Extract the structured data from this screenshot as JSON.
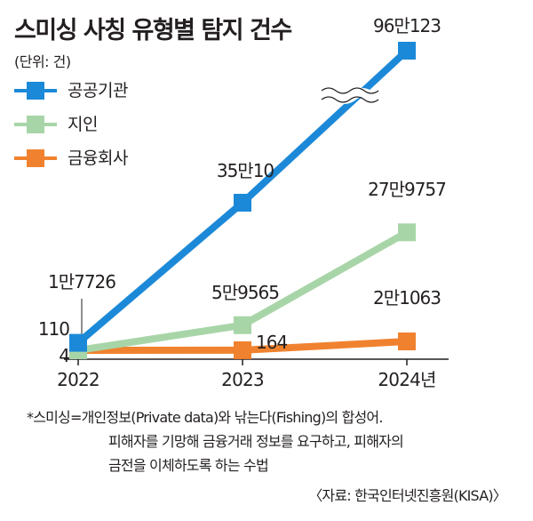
{
  "title": "스미싱 사칭 유형별 탐지 건수",
  "unit": "(단위: 건)",
  "colors": {
    "public": "#1c89d8",
    "acquaint": "#a8d5a8",
    "finance": "#f0822f"
  },
  "chart_data": {
    "type": "line",
    "title": "스미싱 사칭 유형별 탐지 건수",
    "unit_label": "(단위: 건)",
    "categories": [
      "2022",
      "2023",
      "2024년"
    ],
    "axis_break_on": "공공기관",
    "legend_position": "top-left",
    "grid": false,
    "series": [
      {
        "name": "공공기관",
        "color": "#1c89d8",
        "values": [
          17726,
          350010,
          960123
        ],
        "labels": [
          "1만7726",
          "35만10",
          "96만123"
        ]
      },
      {
        "name": "지인",
        "color": "#a8d5a8",
        "values": [
          4,
          59565,
          279757
        ],
        "labels": [
          "4",
          "5만9565",
          "27만9757"
        ]
      },
      {
        "name": "금융회사",
        "color": "#f0822f",
        "values": [
          110,
          164,
          21063
        ],
        "labels": [
          "110",
          "164",
          "2만1063"
        ]
      }
    ]
  },
  "note": {
    "line1": "*스미싱=개인정보(Private data)와 낚는다(Fishing)의 합성어.",
    "line2": "피해자를 기망해 금융거래 정보를 요구하고, 피해자의",
    "line3": "금전을 이체하도록 하는 수법"
  },
  "source": "〈자료: 한국인터넷진흥원(KISA)〉"
}
